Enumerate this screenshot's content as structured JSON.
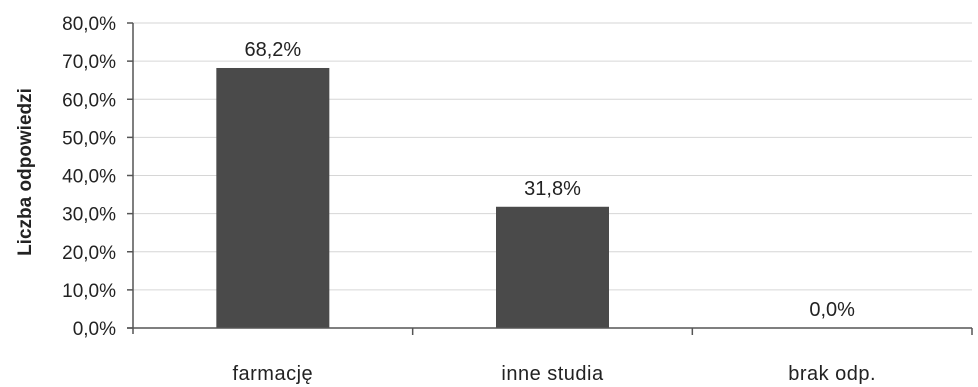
{
  "chart_data": {
    "type": "bar",
    "categories": [
      "farmację",
      "inne studia",
      "brak odp."
    ],
    "values": [
      68.2,
      31.8,
      0.0
    ],
    "data_labels": [
      "68,2%",
      "31,8%",
      "0,0%"
    ],
    "title": "",
    "xlabel": "",
    "ylabel": "Liczba odpowiedzi",
    "ylim": [
      0,
      80
    ],
    "y_ticks": [
      0,
      10,
      20,
      30,
      40,
      50,
      60,
      70,
      80
    ],
    "y_tick_labels": [
      "0,0%",
      "10,0%",
      "20,0%",
      "30,0%",
      "40,0%",
      "50,0%",
      "60,0%",
      "70,0%",
      "80,0%"
    ],
    "grid": true,
    "legend": "none",
    "bar_color": "#4a4a4a"
  }
}
